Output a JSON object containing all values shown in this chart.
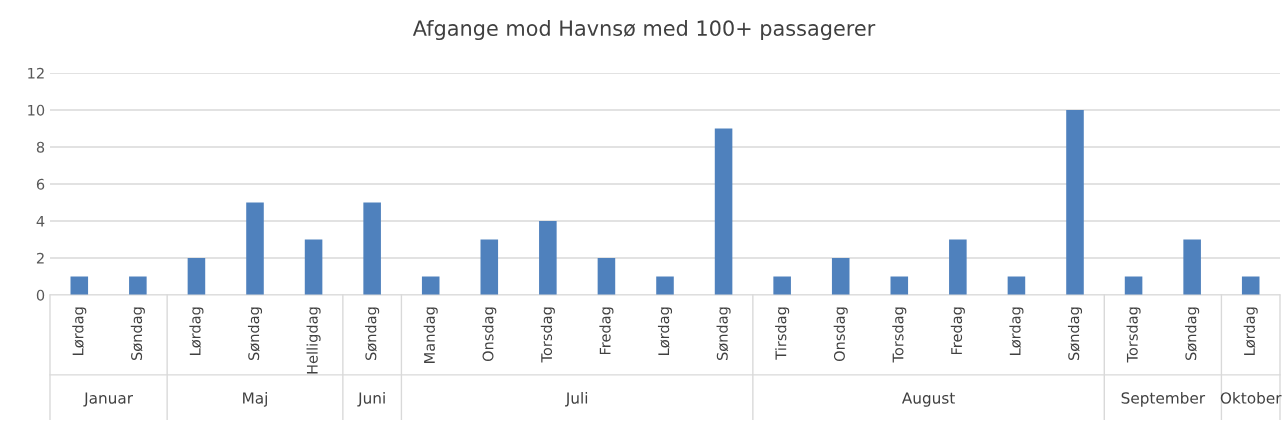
{
  "chart_data": {
    "type": "bar",
    "title": "Afgange mod Havnsø med 100+ passagerer",
    "categories": [
      "Lørdag",
      "Søndag",
      "Lørdag",
      "Søndag",
      "Helligdag",
      "Søndag",
      "Mandag",
      "Onsdag",
      "Torsdag",
      "Fredag",
      "Lørdag",
      "Søndag",
      "Tirsdag",
      "Onsdag",
      "Torsdag",
      "Fredag",
      "Lørdag",
      "Søndag",
      "Torsdag",
      "Søndag",
      "Lørdag"
    ],
    "values": [
      1,
      1,
      2,
      5,
      3,
      5,
      1,
      3,
      4,
      2,
      1,
      9,
      1,
      2,
      1,
      3,
      1,
      10,
      1,
      3,
      1
    ],
    "color": "#4f81bd",
    "annotations": [
      "Januar",
      "Maj",
      "Juni",
      "Juli",
      "August",
      "September",
      "Oktober"
    ],
    "ylim": [
      0,
      12
    ],
    "yticks": [
      0,
      2,
      4,
      6,
      8,
      10,
      12
    ],
    "grid": "y",
    "legend": false
  }
}
